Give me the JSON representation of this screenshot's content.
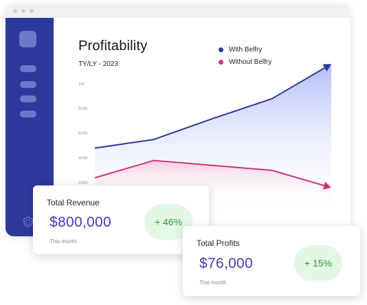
{
  "header": {
    "title": "Profitability",
    "subtitle": "TY/LY - 2023"
  },
  "legend": [
    {
      "label": "With Belfry",
      "color": "#2b3a9c"
    },
    {
      "label": "Without Belfry",
      "color": "#d0307a"
    }
  ],
  "chart_data": {
    "type": "area",
    "title": "Profitability",
    "subtitle": "TY/LY - 2023",
    "y_ticks": [
      "1M",
      "800K",
      "600K",
      "400K",
      "200K"
    ],
    "ylim": [
      0,
      1000000
    ],
    "series": [
      {
        "name": "With Belfry",
        "values": [
          480000,
          550000,
          720000,
          880000,
          1160000
        ],
        "color": "#2b3a9c"
      },
      {
        "name": "Without Belfry",
        "values": [
          240000,
          380000,
          340000,
          300000,
          160000
        ],
        "color": "#d0307a"
      }
    ]
  },
  "cards": {
    "revenue": {
      "label": "Total Revenue",
      "value": "$800,000",
      "note": "This month",
      "change": "+ 46%"
    },
    "profits": {
      "label": "Total Profits",
      "value": "$76,000",
      "note": "This month",
      "change": "+ 15%"
    }
  },
  "icons": {
    "sidebar_bottom": "shield-icon"
  }
}
